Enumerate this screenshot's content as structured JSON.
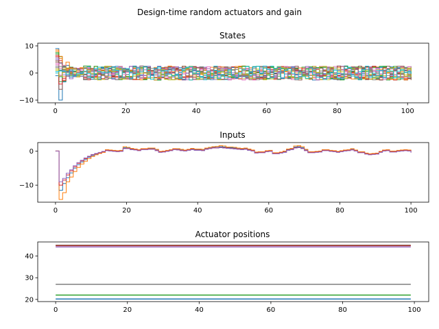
{
  "suptitle": "Design-time random actuators and gain",
  "chart_data": [
    {
      "type": "line",
      "drawstyle": "steps-post",
      "title": "States",
      "xlabel": "",
      "ylabel": "",
      "xlim": [
        -5,
        106
      ],
      "ylim": [
        -11,
        11
      ],
      "xticks": [
        0,
        20,
        40,
        60,
        80,
        100
      ],
      "yticks": [
        -10,
        0,
        10
      ],
      "grid": false,
      "series_count": 20,
      "x": [
        0,
        1,
        2,
        3,
        4,
        5,
        6,
        7,
        8,
        9,
        10,
        12,
        15,
        20,
        25,
        30,
        35,
        40,
        45,
        50,
        55,
        60,
        65,
        70,
        75,
        80,
        85,
        90,
        95,
        100,
        101
      ],
      "initial_values": [
        9,
        8,
        7,
        6,
        5,
        4,
        3,
        2,
        1,
        0,
        -1,
        8.5,
        7.5,
        6.5,
        5.5,
        4.5,
        3.5,
        2.5,
        1.5,
        0.5
      ],
      "post_transient_range": [
        -3,
        3
      ],
      "min_values": [
        -10,
        -6
      ],
      "note_values": "20 state trajectories, step plots, large oscillation near t=0 (range about -10 to 9), then settling into roughly -3..3 band through t=101"
    },
    {
      "type": "line",
      "drawstyle": "steps-post",
      "title": "Inputs",
      "xlabel": "",
      "ylabel": "",
      "xlim": [
        -5,
        105
      ],
      "ylim": [
        -15,
        2.5
      ],
      "xticks": [
        0,
        20,
        40,
        60,
        80,
        100
      ],
      "yticks": [
        -10,
        0
      ],
      "grid": false,
      "x": [
        0,
        1,
        2,
        3,
        4,
        5,
        6,
        7,
        8,
        9,
        10,
        11,
        12,
        13,
        14,
        15,
        16,
        17,
        18,
        19,
        20,
        21,
        22,
        23,
        24,
        25,
        26,
        27,
        28,
        29,
        30,
        31,
        32,
        33,
        34,
        35,
        36,
        37,
        38,
        39,
        40,
        41,
        42,
        43,
        44,
        45,
        46,
        47,
        48,
        49,
        50,
        51,
        52,
        53,
        54,
        55,
        56,
        57,
        58,
        59,
        60,
        61,
        62,
        63,
        64,
        65,
        66,
        67,
        68,
        69,
        70,
        71,
        72,
        73,
        74,
        75,
        76,
        77,
        78,
        79,
        80,
        81,
        82,
        83,
        84,
        85,
        86,
        87,
        88,
        89,
        90,
        91,
        92,
        93,
        94,
        95,
        96,
        97,
        98,
        99,
        100
      ],
      "series": [
        {
          "values": [
            0,
            -11.5,
            -9.5,
            -7.8,
            -6.4,
            -5.0,
            -4.0,
            -3.2,
            -2.5,
            -1.8,
            -1.3,
            -0.9,
            -0.6,
            -0.3,
            0.3,
            0.2,
            0.1,
            0.0,
            0.1,
            1.0,
            0.9,
            0.6,
            0.5,
            0.3,
            0.6,
            0.6,
            0.7,
            0.7,
            0.3,
            -0.2,
            -0.1,
            0.1,
            0.3,
            0.6,
            0.5,
            0.3,
            0.2,
            0.4,
            0.6,
            0.4,
            0.4,
            0.3,
            0.7,
            0.9,
            1.1,
            1.1,
            1.3,
            1.2,
            1.0,
            1.0,
            0.9,
            0.7,
            0.6,
            0.7,
            0.4,
            0.2,
            -0.4,
            -0.3,
            -0.3,
            0.0,
            0.1,
            -0.6,
            -0.6,
            -0.4,
            -0.2,
            0.4,
            0.6,
            1.2,
            1.3,
            1.0,
            0.3,
            -0.3,
            -0.3,
            -0.2,
            -0.1,
            0.3,
            0.3,
            0.1,
            0.0,
            -0.2,
            0.0,
            0.2,
            0.3,
            0.5,
            0.2,
            -0.3,
            -0.3,
            -0.7,
            -0.9,
            -0.8,
            -0.7,
            -0.2,
            0.2,
            0.3,
            -0.1,
            -0.1,
            0.1,
            0.2,
            0.3,
            0.2,
            -0.3
          ]
        },
        {
          "values": [
            0,
            -14.2,
            -12.2,
            -9.0,
            -7.6,
            -6.0,
            -4.8,
            -3.8,
            -3.0,
            -2.2,
            -1.6,
            -1.1,
            -0.7,
            -0.4,
            0.4,
            0.3,
            0.2,
            0.1,
            0.2,
            1.3,
            1.1,
            0.8,
            0.6,
            0.4,
            0.7,
            0.7,
            0.9,
            0.9,
            0.5,
            -0.1,
            0.0,
            0.2,
            0.4,
            0.7,
            0.7,
            0.5,
            0.3,
            0.5,
            0.8,
            0.6,
            0.6,
            0.5,
            0.9,
            1.1,
            1.3,
            1.4,
            1.6,
            1.5,
            1.2,
            1.2,
            1.1,
            0.9,
            0.8,
            0.9,
            0.6,
            0.3,
            -0.3,
            -0.2,
            -0.2,
            0.1,
            0.2,
            -0.5,
            -0.5,
            -0.3,
            0.0,
            0.6,
            0.8,
            1.5,
            1.6,
            1.3,
            0.5,
            -0.2,
            -0.2,
            -0.1,
            0.0,
            0.4,
            0.4,
            0.2,
            0.1,
            -0.1,
            0.1,
            0.3,
            0.4,
            0.7,
            0.3,
            -0.2,
            -0.2,
            -0.6,
            -0.8,
            -0.7,
            -0.6,
            -0.1,
            0.3,
            0.4,
            0.0,
            0.0,
            0.2,
            0.3,
            0.4,
            0.3,
            -0.2
          ]
        },
        {
          "values": [
            0,
            -10.0,
            -8.5,
            -7.0,
            -5.8,
            -4.6,
            -3.6,
            -2.9,
            -2.2,
            -1.6,
            -1.1,
            -0.8,
            -0.5,
            -0.2,
            0.2,
            0.1,
            0.0,
            -0.1,
            0.0,
            0.8,
            0.8,
            0.5,
            0.4,
            0.2,
            0.5,
            0.5,
            0.6,
            0.6,
            0.2,
            -0.3,
            -0.2,
            0.0,
            0.2,
            0.5,
            0.4,
            0.2,
            0.1,
            0.3,
            0.5,
            0.3,
            0.3,
            0.2,
            0.6,
            0.8,
            1.0,
            1.0,
            1.1,
            1.0,
            0.9,
            0.8,
            0.7,
            0.6,
            0.5,
            0.6,
            0.3,
            0.1,
            -0.5,
            -0.4,
            -0.4,
            -0.1,
            0.0,
            -0.7,
            -0.7,
            -0.5,
            -0.3,
            0.3,
            0.5,
            1.0,
            1.1,
            0.8,
            0.2,
            -0.4,
            -0.4,
            -0.3,
            -0.2,
            0.2,
            0.2,
            0.0,
            -0.1,
            -0.3,
            -0.1,
            0.1,
            0.2,
            0.4,
            0.1,
            -0.4,
            -0.4,
            -0.8,
            -1.0,
            -0.9,
            -0.8,
            -0.3,
            0.1,
            0.2,
            -0.2,
            -0.2,
            0.0,
            0.1,
            0.2,
            0.1,
            -0.4
          ]
        },
        {
          "values": [
            0,
            -9.0,
            -8.0,
            -6.5,
            -5.5,
            -4.3,
            -3.4,
            -2.7,
            -2.0,
            -1.5,
            -1.0,
            -0.7,
            -0.4,
            -0.1,
            0.1,
            0.0,
            -0.1,
            -0.2,
            -0.1,
            0.7,
            0.7,
            0.4,
            0.3,
            0.1,
            0.4,
            0.4,
            0.5,
            0.5,
            0.1,
            -0.4,
            -0.3,
            -0.1,
            0.1,
            0.4,
            0.3,
            0.1,
            0.0,
            0.2,
            0.4,
            0.2,
            0.2,
            0.1,
            0.5,
            0.7,
            0.9,
            0.9,
            1.0,
            0.9,
            0.8,
            0.7,
            0.6,
            0.5,
            0.4,
            0.5,
            0.2,
            0.0,
            -0.6,
            -0.5,
            -0.5,
            -0.2,
            -0.1,
            -0.8,
            -0.8,
            -0.6,
            -0.4,
            0.2,
            0.4,
            0.9,
            1.0,
            0.7,
            0.1,
            -0.5,
            -0.5,
            -0.4,
            -0.3,
            0.1,
            0.1,
            -0.1,
            -0.2,
            -0.4,
            -0.2,
            0.0,
            0.1,
            0.3,
            0.0,
            -0.5,
            -0.5,
            -0.9,
            -1.1,
            -1.0,
            -0.9,
            -0.4,
            0.0,
            0.1,
            -0.3,
            -0.3,
            -0.1,
            0.0,
            0.1,
            0.0,
            -0.5
          ]
        }
      ]
    },
    {
      "type": "line",
      "title": "Actuator positions",
      "xlabel": "",
      "ylabel": "",
      "xlim": [
        -5,
        104
      ],
      "ylim": [
        19,
        46.5
      ],
      "xticks": [
        0,
        20,
        40,
        60,
        80,
        100
      ],
      "yticks": [
        20,
        30,
        40
      ],
      "grid": false,
      "x_range": [
        0,
        99
      ],
      "series": [
        {
          "values": [
            20.2,
            20.2
          ]
        },
        {
          "values": [
            22.0,
            22.0
          ]
        },
        {
          "values": [
            27.0,
            27.0
          ]
        },
        {
          "values": [
            44.2,
            44.2
          ]
        },
        {
          "values": [
            44.8,
            44.8
          ]
        },
        {
          "values": [
            45.0,
            45.0
          ]
        }
      ]
    }
  ],
  "colors": [
    "#1f77b4",
    "#ff7f0e",
    "#2ca02c",
    "#d62728",
    "#9467bd",
    "#8c564b",
    "#e377c2",
    "#7f7f7f",
    "#bcbd22",
    "#17becf"
  ]
}
